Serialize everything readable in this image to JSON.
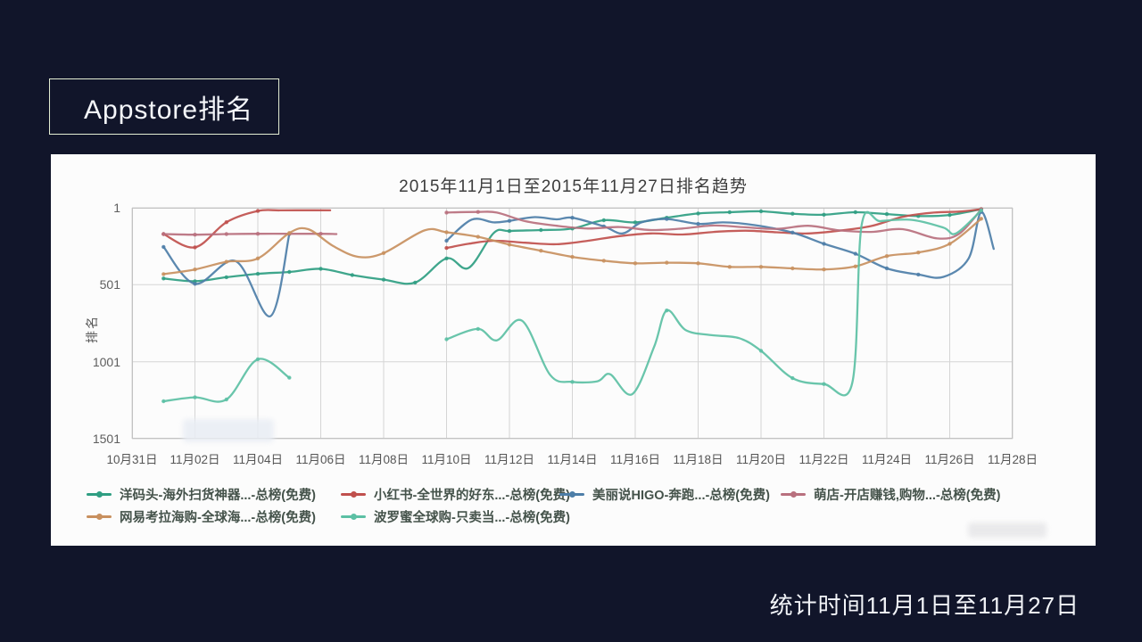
{
  "slide": {
    "title": "Appstore排名",
    "footer": "统计时间11月1日至11月27日",
    "colors": {
      "background": "#11152a",
      "panel": "#fcfcfc",
      "title_border": "#e3ecd2"
    }
  },
  "chart_data": {
    "type": "line",
    "title": "2015年11月1日至2015年11月27日排名趋势",
    "ylabel": "排名",
    "xlabel": "",
    "grid": true,
    "legend_position": "bottom",
    "y_inverted": true,
    "ylim": [
      1,
      1501
    ],
    "y_ticks": [
      1,
      501,
      1001,
      1501
    ],
    "x_range_days": [
      0,
      28
    ],
    "x_tick_labels": [
      "10月31日",
      "11月02日",
      "11月04日",
      "11月06日",
      "11月08日",
      "11月10日",
      "11月12日",
      "11月14日",
      "11月16日",
      "11月18日",
      "11月20日",
      "11月22日",
      "11月24日",
      "11月26日",
      "11月28日"
    ],
    "series": [
      {
        "name": "洋码头-海外扫货神器...-总榜(免费)",
        "color": "#2f9e82",
        "segments": [
          [
            [
              1,
              460
            ],
            [
              2,
              478
            ],
            [
              3,
              452
            ],
            [
              4,
              430
            ],
            [
              5,
              418
            ],
            [
              6,
              398
            ],
            [
              7,
              438
            ],
            [
              8,
              468
            ],
            [
              9,
              487
            ],
            [
              10,
              330
            ],
            [
              10.7,
              392
            ],
            [
              11.5,
              165
            ],
            [
              12,
              152
            ],
            [
              13,
              146
            ],
            [
              14,
              136
            ],
            [
              15,
              82
            ],
            [
              16,
              96
            ],
            [
              17,
              66
            ],
            [
              18,
              38
            ],
            [
              19,
              30
            ],
            [
              20,
              24
            ],
            [
              21,
              40
            ],
            [
              22,
              46
            ],
            [
              23,
              30
            ],
            [
              24,
              42
            ],
            [
              25,
              55
            ],
            [
              26,
              48
            ],
            [
              27,
              10
            ]
          ]
        ]
      },
      {
        "name": "小红书-全世界的好东...-总榜(免费)",
        "color": "#c0504d",
        "segments": [
          [
            [
              1,
              172
            ],
            [
              2,
              258
            ],
            [
              3,
              95
            ],
            [
              4,
              22
            ],
            [
              4.7,
              18
            ],
            [
              5.5,
              17
            ],
            [
              6.3,
              18
            ]
          ],
          [
            [
              10,
              262
            ],
            [
              10.7,
              235
            ],
            [
              11.5,
              215
            ],
            [
              12.5,
              228
            ],
            [
              13.5,
              238
            ],
            [
              14.5,
              215
            ],
            [
              15.5,
              185
            ],
            [
              16.5,
              168
            ],
            [
              17.5,
              175
            ],
            [
              18.5,
              158
            ],
            [
              19.5,
              150
            ],
            [
              20.5,
              160
            ],
            [
              21.5,
              168
            ],
            [
              22.5,
              150
            ],
            [
              23.5,
              120
            ],
            [
              24.5,
              60
            ],
            [
              25.5,
              32
            ],
            [
              26.3,
              26
            ],
            [
              27,
              10
            ]
          ]
        ]
      },
      {
        "name": "美丽说HIGO-奔跑...-总榜(免费)",
        "color": "#4d7ea8",
        "segments": [
          [
            [
              1,
              255
            ],
            [
              2,
              495
            ],
            [
              3.3,
              348
            ],
            [
              4.4,
              705
            ],
            [
              5,
              172
            ]
          ],
          [
            [
              10,
              215
            ],
            [
              10.8,
              78
            ],
            [
              11.5,
              96
            ],
            [
              12,
              86
            ],
            [
              12.8,
              62
            ],
            [
              13.5,
              76
            ],
            [
              14,
              66
            ],
            [
              15,
              122
            ],
            [
              15.6,
              168
            ],
            [
              16.2,
              96
            ],
            [
              17,
              74
            ],
            [
              18,
              106
            ],
            [
              18.8,
              96
            ],
            [
              19.8,
              114
            ],
            [
              21,
              162
            ],
            [
              22,
              235
            ],
            [
              23,
              300
            ],
            [
              24,
              395
            ],
            [
              25,
              435
            ],
            [
              25.8,
              450
            ],
            [
              26.6,
              330
            ],
            [
              27,
              28
            ],
            [
              27.4,
              268
            ]
          ]
        ]
      },
      {
        "name": "萌店-开店赚钱,购物...-总榜(免费)",
        "color": "#b8707e",
        "segments": [
          [
            [
              1,
              172
            ],
            [
              2,
              176
            ],
            [
              3,
              172
            ],
            [
              4,
              170
            ],
            [
              5,
              170
            ],
            [
              6,
              170
            ],
            [
              6.5,
              172
            ]
          ],
          [
            [
              10,
              32
            ],
            [
              11,
              28
            ],
            [
              11.6,
              32
            ],
            [
              12.5,
              88
            ],
            [
              13.5,
              118
            ],
            [
              14.5,
              136
            ],
            [
              15.5,
              126
            ],
            [
              16.5,
              146
            ],
            [
              17.5,
              136
            ],
            [
              18.5,
              116
            ],
            [
              19.5,
              128
            ],
            [
              20.5,
              138
            ],
            [
              21.5,
              118
            ],
            [
              22.5,
              148
            ],
            [
              23.5,
              158
            ],
            [
              24.5,
              140
            ],
            [
              25.6,
              200
            ],
            [
              26.3,
              170
            ],
            [
              27,
              12
            ]
          ]
        ]
      },
      {
        "name": "网易考拉海购-全球海...-总榜(免费)",
        "color": "#c8905f",
        "segments": [
          [
            [
              1,
              432
            ],
            [
              2,
              402
            ],
            [
              3,
              352
            ],
            [
              4,
              330
            ],
            [
              5,
              165
            ],
            [
              5.6,
              140
            ],
            [
              6.4,
              250
            ],
            [
              7.2,
              320
            ],
            [
              8,
              295
            ],
            [
              9.3,
              148
            ],
            [
              10,
              160
            ],
            [
              11,
              190
            ],
            [
              12,
              240
            ],
            [
              13,
              280
            ],
            [
              14,
              320
            ],
            [
              15,
              345
            ],
            [
              16,
              362
            ],
            [
              17,
              358
            ],
            [
              18,
              362
            ],
            [
              19,
              385
            ],
            [
              20,
              385
            ],
            [
              21,
              395
            ],
            [
              22,
              402
            ],
            [
              23,
              382
            ],
            [
              24,
              315
            ],
            [
              25,
              292
            ],
            [
              26,
              235
            ],
            [
              27,
              72
            ]
          ]
        ]
      },
      {
        "name": "波罗蜜全球购-只卖当...-总榜(免费)",
        "color": "#5cc0a4",
        "segments": [
          [
            [
              1,
              1258
            ],
            [
              2,
              1232
            ],
            [
              3,
              1246
            ],
            [
              4,
              985
            ],
            [
              5,
              1105
            ]
          ],
          [
            [
              10,
              855
            ],
            [
              11,
              788
            ],
            [
              11.6,
              862
            ],
            [
              12.4,
              735
            ],
            [
              13.3,
              1088
            ],
            [
              14,
              1132
            ],
            [
              14.8,
              1128
            ],
            [
              15.2,
              1082
            ],
            [
              15.9,
              1212
            ],
            [
              16.6,
              905
            ],
            [
              17,
              668
            ],
            [
              17.6,
              795
            ],
            [
              18.4,
              828
            ],
            [
              19.3,
              848
            ],
            [
              20,
              930
            ],
            [
              21,
              1108
            ],
            [
              22,
              1146
            ],
            [
              22.9,
              1140
            ],
            [
              23.2,
              112
            ],
            [
              23.8,
              88
            ],
            [
              24.8,
              80
            ],
            [
              25.8,
              130
            ],
            [
              26.2,
              168
            ],
            [
              27,
              18
            ]
          ]
        ]
      }
    ]
  }
}
